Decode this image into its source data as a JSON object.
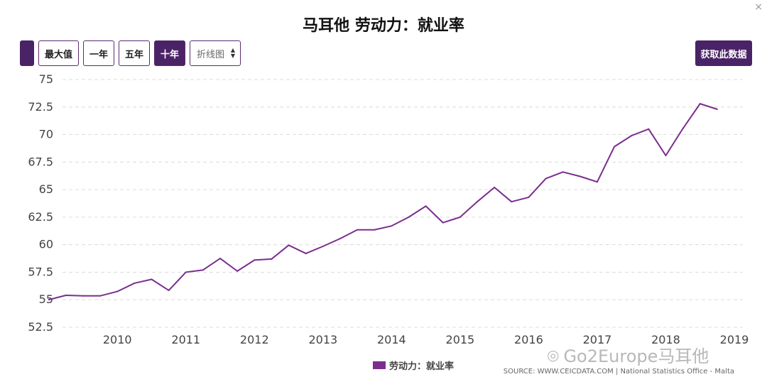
{
  "header": {
    "title": "马耳他 劳动力：就业率",
    "close_symbol": "×"
  },
  "toolbar": {
    "buttons": [
      {
        "label": ""
      },
      {
        "label": "最大值"
      },
      {
        "label": "一年"
      },
      {
        "label": "五年"
      },
      {
        "label": "十年"
      }
    ],
    "select_value": "折线图",
    "fetch_label": "获取此数据"
  },
  "legend": {
    "label": "劳动力：就业率",
    "color": "#7b2e8e"
  },
  "source": "SOURCE: WWW.CEICDATA.COM | National Statistics Office - Malta",
  "watermark": "Go2Europe马耳他",
  "chart_data": {
    "type": "line",
    "title": "马耳他 劳动力：就业率",
    "xlabel": "",
    "ylabel": "",
    "ylim": [
      52.5,
      75
    ],
    "xlim": [
      2009.2,
      2019.0
    ],
    "yticks": [
      52.5,
      55,
      57.5,
      60,
      62.5,
      65,
      67.5,
      70,
      72.5,
      75
    ],
    "ytick_labels": [
      "52.5",
      "55",
      "57.5",
      "60",
      "62.5",
      "65",
      "67.5",
      "70",
      "72.5",
      "75"
    ],
    "xticks": [
      2010,
      2011,
      2012,
      2013,
      2014,
      2015,
      2016,
      2017,
      2018,
      2019
    ],
    "xtick_labels": [
      "2010",
      "2011",
      "2012",
      "2013",
      "2014",
      "2015",
      "2016",
      "2017",
      "2018",
      "2019"
    ],
    "grid": true,
    "series": [
      {
        "name": "劳动力：就业率",
        "color": "#7b2e8e",
        "x": [
          2009.0,
          2009.25,
          2009.5,
          2009.75,
          2010.0,
          2010.25,
          2010.5,
          2010.75,
          2011.0,
          2011.25,
          2011.5,
          2011.75,
          2012.0,
          2012.25,
          2012.5,
          2012.75,
          2013.0,
          2013.25,
          2013.5,
          2013.75,
          2014.0,
          2014.25,
          2014.5,
          2014.75,
          2015.0,
          2015.25,
          2015.5,
          2015.75,
          2016.0,
          2016.25,
          2016.5,
          2016.75,
          2017.0,
          2017.25,
          2017.5,
          2017.75,
          2018.0,
          2018.25,
          2018.5,
          2018.75
        ],
        "values": [
          55.0,
          55.4,
          55.35,
          55.35,
          55.75,
          56.5,
          56.85,
          55.85,
          57.5,
          57.7,
          58.75,
          57.6,
          58.6,
          58.7,
          59.95,
          59.2,
          59.85,
          60.55,
          61.35,
          61.35,
          61.7,
          62.5,
          63.5,
          62.0,
          62.5,
          63.9,
          65.2,
          63.9,
          64.3,
          66.0,
          66.6,
          66.2,
          65.7,
          68.9,
          69.9,
          70.5,
          68.1,
          70.55,
          72.8,
          72.3
        ]
      }
    ]
  }
}
